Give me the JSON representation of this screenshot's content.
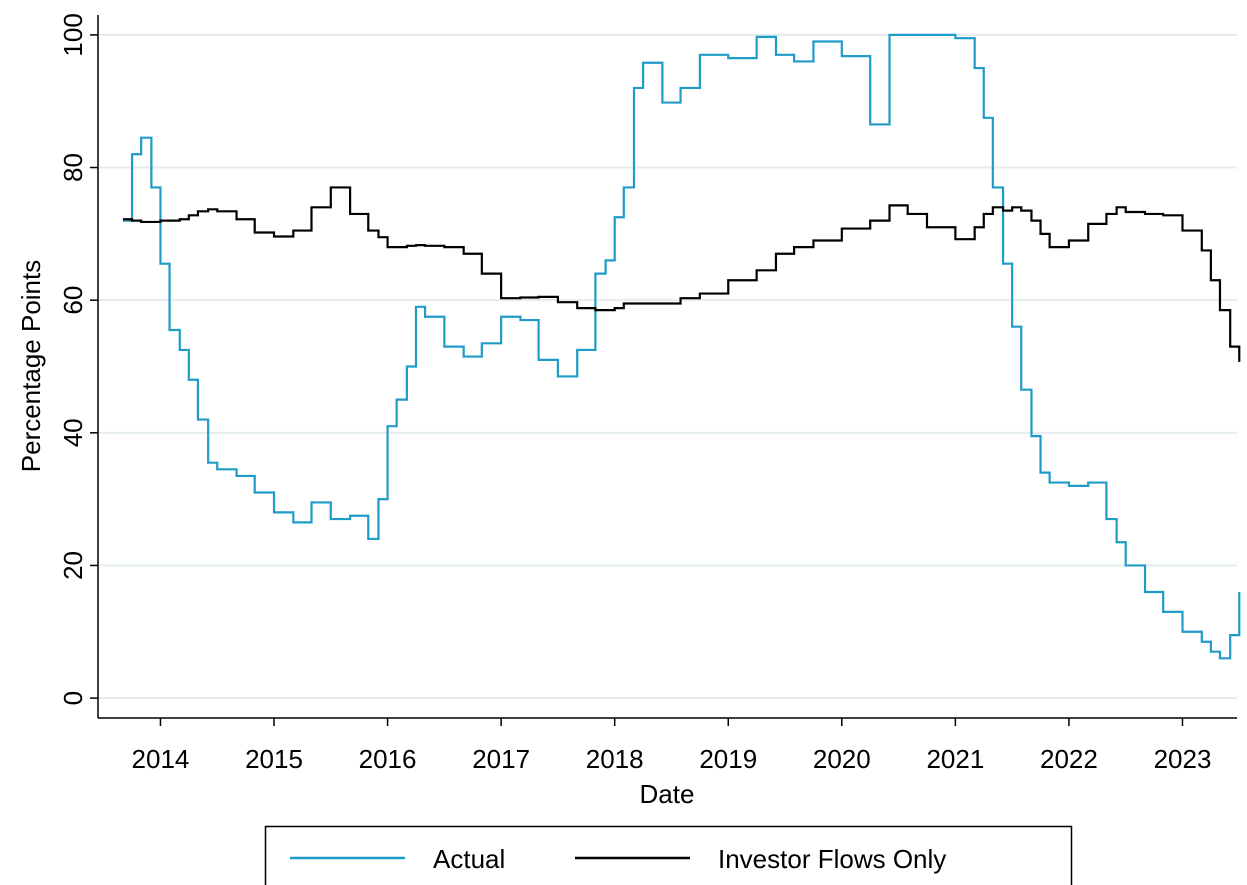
{
  "chart_data": {
    "type": "line",
    "step": true,
    "x_label": "Date",
    "y_label": "Percentage Points",
    "x": [
      2013.67,
      2013.75,
      2013.83,
      2013.92,
      2014.0,
      2014.08,
      2014.17,
      2014.25,
      2014.33,
      2014.42,
      2014.5,
      2014.67,
      2014.83,
      2015.0,
      2015.17,
      2015.33,
      2015.5,
      2015.67,
      2015.83,
      2015.92,
      2016.0,
      2016.08,
      2016.17,
      2016.25,
      2016.33,
      2016.5,
      2016.67,
      2016.83,
      2017.0,
      2017.17,
      2017.33,
      2017.5,
      2017.67,
      2017.83,
      2017.92,
      2018.0,
      2018.08,
      2018.17,
      2018.25,
      2018.42,
      2018.58,
      2018.75,
      2019.0,
      2019.25,
      2019.42,
      2019.58,
      2019.75,
      2020.0,
      2020.25,
      2020.42,
      2020.58,
      2020.75,
      2021.0,
      2021.17,
      2021.25,
      2021.33,
      2021.42,
      2021.5,
      2021.58,
      2021.67,
      2021.75,
      2021.83,
      2022.0,
      2022.17,
      2022.33,
      2022.42,
      2022.5,
      2022.67,
      2022.83,
      2023.0,
      2023.17,
      2023.25,
      2023.33,
      2023.42,
      2023.5
    ],
    "series": [
      {
        "name": "Actual",
        "color": "#1f9bc8",
        "values": [
          72,
          82,
          84.5,
          77,
          65.5,
          55.5,
          52.5,
          48,
          42,
          35.5,
          34.5,
          33.5,
          31,
          28,
          26.5,
          29.5,
          27,
          27.5,
          24,
          30,
          41,
          45,
          50,
          59,
          57.5,
          53,
          51.5,
          53.5,
          57.5,
          57,
          51,
          48.5,
          52.5,
          64,
          66,
          72.5,
          77,
          92,
          95.8,
          89.8,
          92,
          97,
          96.5,
          99.7,
          97,
          96,
          99,
          96.8,
          86.5,
          100,
          100,
          100,
          99.5,
          95,
          87.5,
          77,
          65.5,
          56,
          46.5,
          39.5,
          34,
          32.5,
          32,
          32.5,
          27,
          23.5,
          20,
          16,
          13,
          10,
          8.5,
          7,
          6,
          9.5,
          16
        ]
      },
      {
        "name": "Investor Flows Only",
        "color": "#000000",
        "values": [
          72.2,
          72,
          71.8,
          71.8,
          72,
          72,
          72.2,
          72.8,
          73.4,
          73.7,
          73.4,
          72.2,
          70.2,
          69.6,
          70.5,
          74,
          77,
          73,
          70.5,
          69.5,
          68,
          68,
          68.2,
          68.3,
          68.2,
          68,
          67,
          64,
          60.3,
          60.4,
          60.5,
          59.7,
          58.8,
          58.5,
          58.5,
          58.8,
          59.5,
          59.5,
          59.5,
          59.5,
          60.3,
          61,
          63,
          64.5,
          67,
          68,
          69,
          70.8,
          72,
          74.3,
          73,
          71,
          69.2,
          71,
          73,
          74,
          73.5,
          74,
          73.5,
          72,
          70,
          68,
          69,
          71.5,
          73,
          74,
          73.3,
          73,
          72.8,
          70.5,
          67.5,
          63,
          58.5,
          53,
          50.7
        ]
      }
    ],
    "xlim": [
      2013.45,
      2023.48
    ],
    "xticks": [
      2014,
      2015,
      2016,
      2017,
      2018,
      2019,
      2020,
      2021,
      2022,
      2023
    ],
    "ylim": [
      -3,
      103
    ],
    "yticks": [
      0,
      20,
      40,
      60,
      80,
      100
    ],
    "grid": true,
    "legend": "bottom"
  }
}
